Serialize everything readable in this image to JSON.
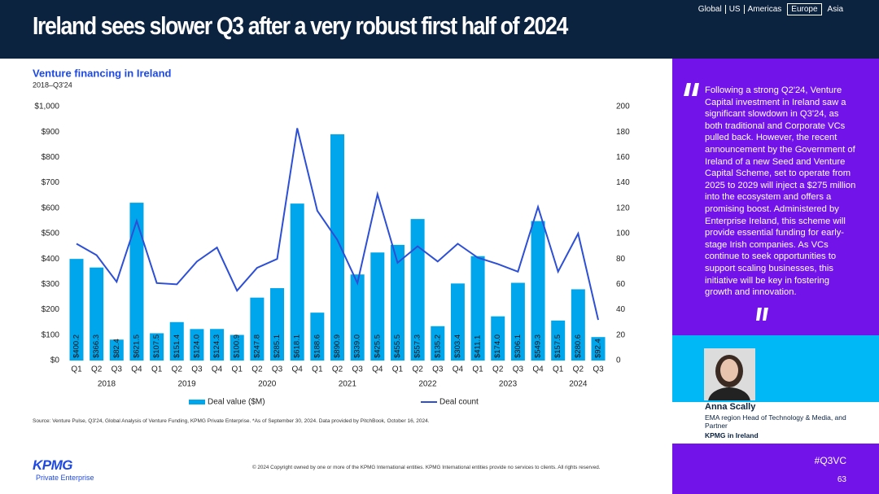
{
  "header": {
    "title": "Ireland sees slower Q3 after a very robust first half of 2024",
    "nav": [
      "Global",
      "US",
      "Americas",
      "Europe",
      "Asia"
    ],
    "nav_active": 3
  },
  "chart_data": {
    "type": "bar_line",
    "title": "Venture financing in Ireland",
    "subtitle": "2018–Q3'24",
    "categories": [
      "Q1",
      "Q2",
      "Q3",
      "Q4",
      "Q1",
      "Q2",
      "Q3",
      "Q4",
      "Q1",
      "Q2",
      "Q3",
      "Q4",
      "Q1",
      "Q2",
      "Q3",
      "Q4",
      "Q1",
      "Q2",
      "Q3",
      "Q4",
      "Q1",
      "Q2",
      "Q3",
      "Q4",
      "Q1",
      "Q2",
      "Q3"
    ],
    "years": [
      "2018",
      "2019",
      "2020",
      "2021",
      "2022",
      "2023",
      "2024"
    ],
    "series": [
      {
        "name": "Deal value ($M)",
        "type": "bar",
        "color": "#00a6ec",
        "values": [
          400.2,
          366.3,
          82.4,
          621.5,
          107.5,
          151.4,
          124.0,
          124.3,
          100.9,
          247.8,
          285.1,
          618.1,
          188.6,
          890.9,
          339.0,
          425.5,
          455.5,
          557.3,
          135.2,
          303.4,
          411.1,
          174.0,
          306.1,
          549.3,
          157.5,
          280.6,
          92.4
        ],
        "value_labels": [
          "$400.2",
          "$366.3",
          "$82.4",
          "$621.5",
          "$107.5",
          "$151.4",
          "$124.0",
          "$124.3",
          "$100.9",
          "$247.8",
          "$285.1",
          "$618.1",
          "$188.6",
          "$890.9",
          "$339.0",
          "$425.5",
          "$455.5",
          "$557.3",
          "$135.2",
          "$303.4",
          "$411.1",
          "$174.0",
          "$306.1",
          "$549.3",
          "$157.5",
          "$280.6",
          "$92.4"
        ]
      },
      {
        "name": "Deal count",
        "type": "line",
        "axis": "y2",
        "color": "#2d4fd6",
        "values": [
          92,
          83,
          62,
          110,
          61,
          60,
          78,
          89,
          55,
          73,
          80,
          183,
          118,
          95,
          61,
          131,
          77,
          90,
          78,
          92,
          81,
          76,
          70,
          121,
          70,
          100,
          32
        ]
      }
    ],
    "ylim": [
      0,
      1000
    ],
    "yticks": [
      {
        "value": 0,
        "label": "$0"
      },
      {
        "value": 100,
        "label": "$100"
      },
      {
        "value": 200,
        "label": "$200"
      },
      {
        "value": 300,
        "label": "$300"
      },
      {
        "value": 400,
        "label": "$400"
      },
      {
        "value": 500,
        "label": "$500"
      },
      {
        "value": 600,
        "label": "$600"
      },
      {
        "value": 700,
        "label": "$700"
      },
      {
        "value": 800,
        "label": "$800"
      },
      {
        "value": 900,
        "label": "$900"
      },
      {
        "value": 1000,
        "label": "$1,000"
      }
    ],
    "y2lim": [
      0,
      200
    ],
    "y2ticks": [
      0,
      20,
      40,
      60,
      80,
      100,
      120,
      140,
      160,
      180,
      200
    ],
    "legend": "bottom",
    "source": "Source: Venture Pulse, Q3'24, Global Analysis of Venture Funding, KPMG Private Enterprise. *As of September 30, 2024. Data provided by PitchBook, October 16, 2024."
  },
  "quote": {
    "text": "Following a strong Q2'24, Venture Capital investment in Ireland saw a significant slowdown in Q3'24, as both traditional and Corporate VCs pulled back. However, the recent announcement by the Government of Ireland of a new Seed and Venture Capital Scheme, set to operate from 2025 to 2029 will inject a $275 million into the ecosystem and offers a promising boost. Administered by Enterprise Ireland, this scheme will provide essential funding for early-stage Irish companies. As VCs continue to seek opportunities to support scaling businesses, this initiative will be key in fostering growth and innovation.",
    "name": "Anna Scally",
    "role": "EMA region Head of Technology & Media, and Partner",
    "company": "KPMG in Ireland"
  },
  "footer": {
    "copyright": "© 2024 Copyright owned by one or more of the KPMG International entities. KPMG International entities provide no services to clients. All rights reserved.",
    "logo": "KPMG",
    "logo_sub": "Private Enterprise",
    "hashtag": "#Q3VC",
    "page": "63"
  }
}
